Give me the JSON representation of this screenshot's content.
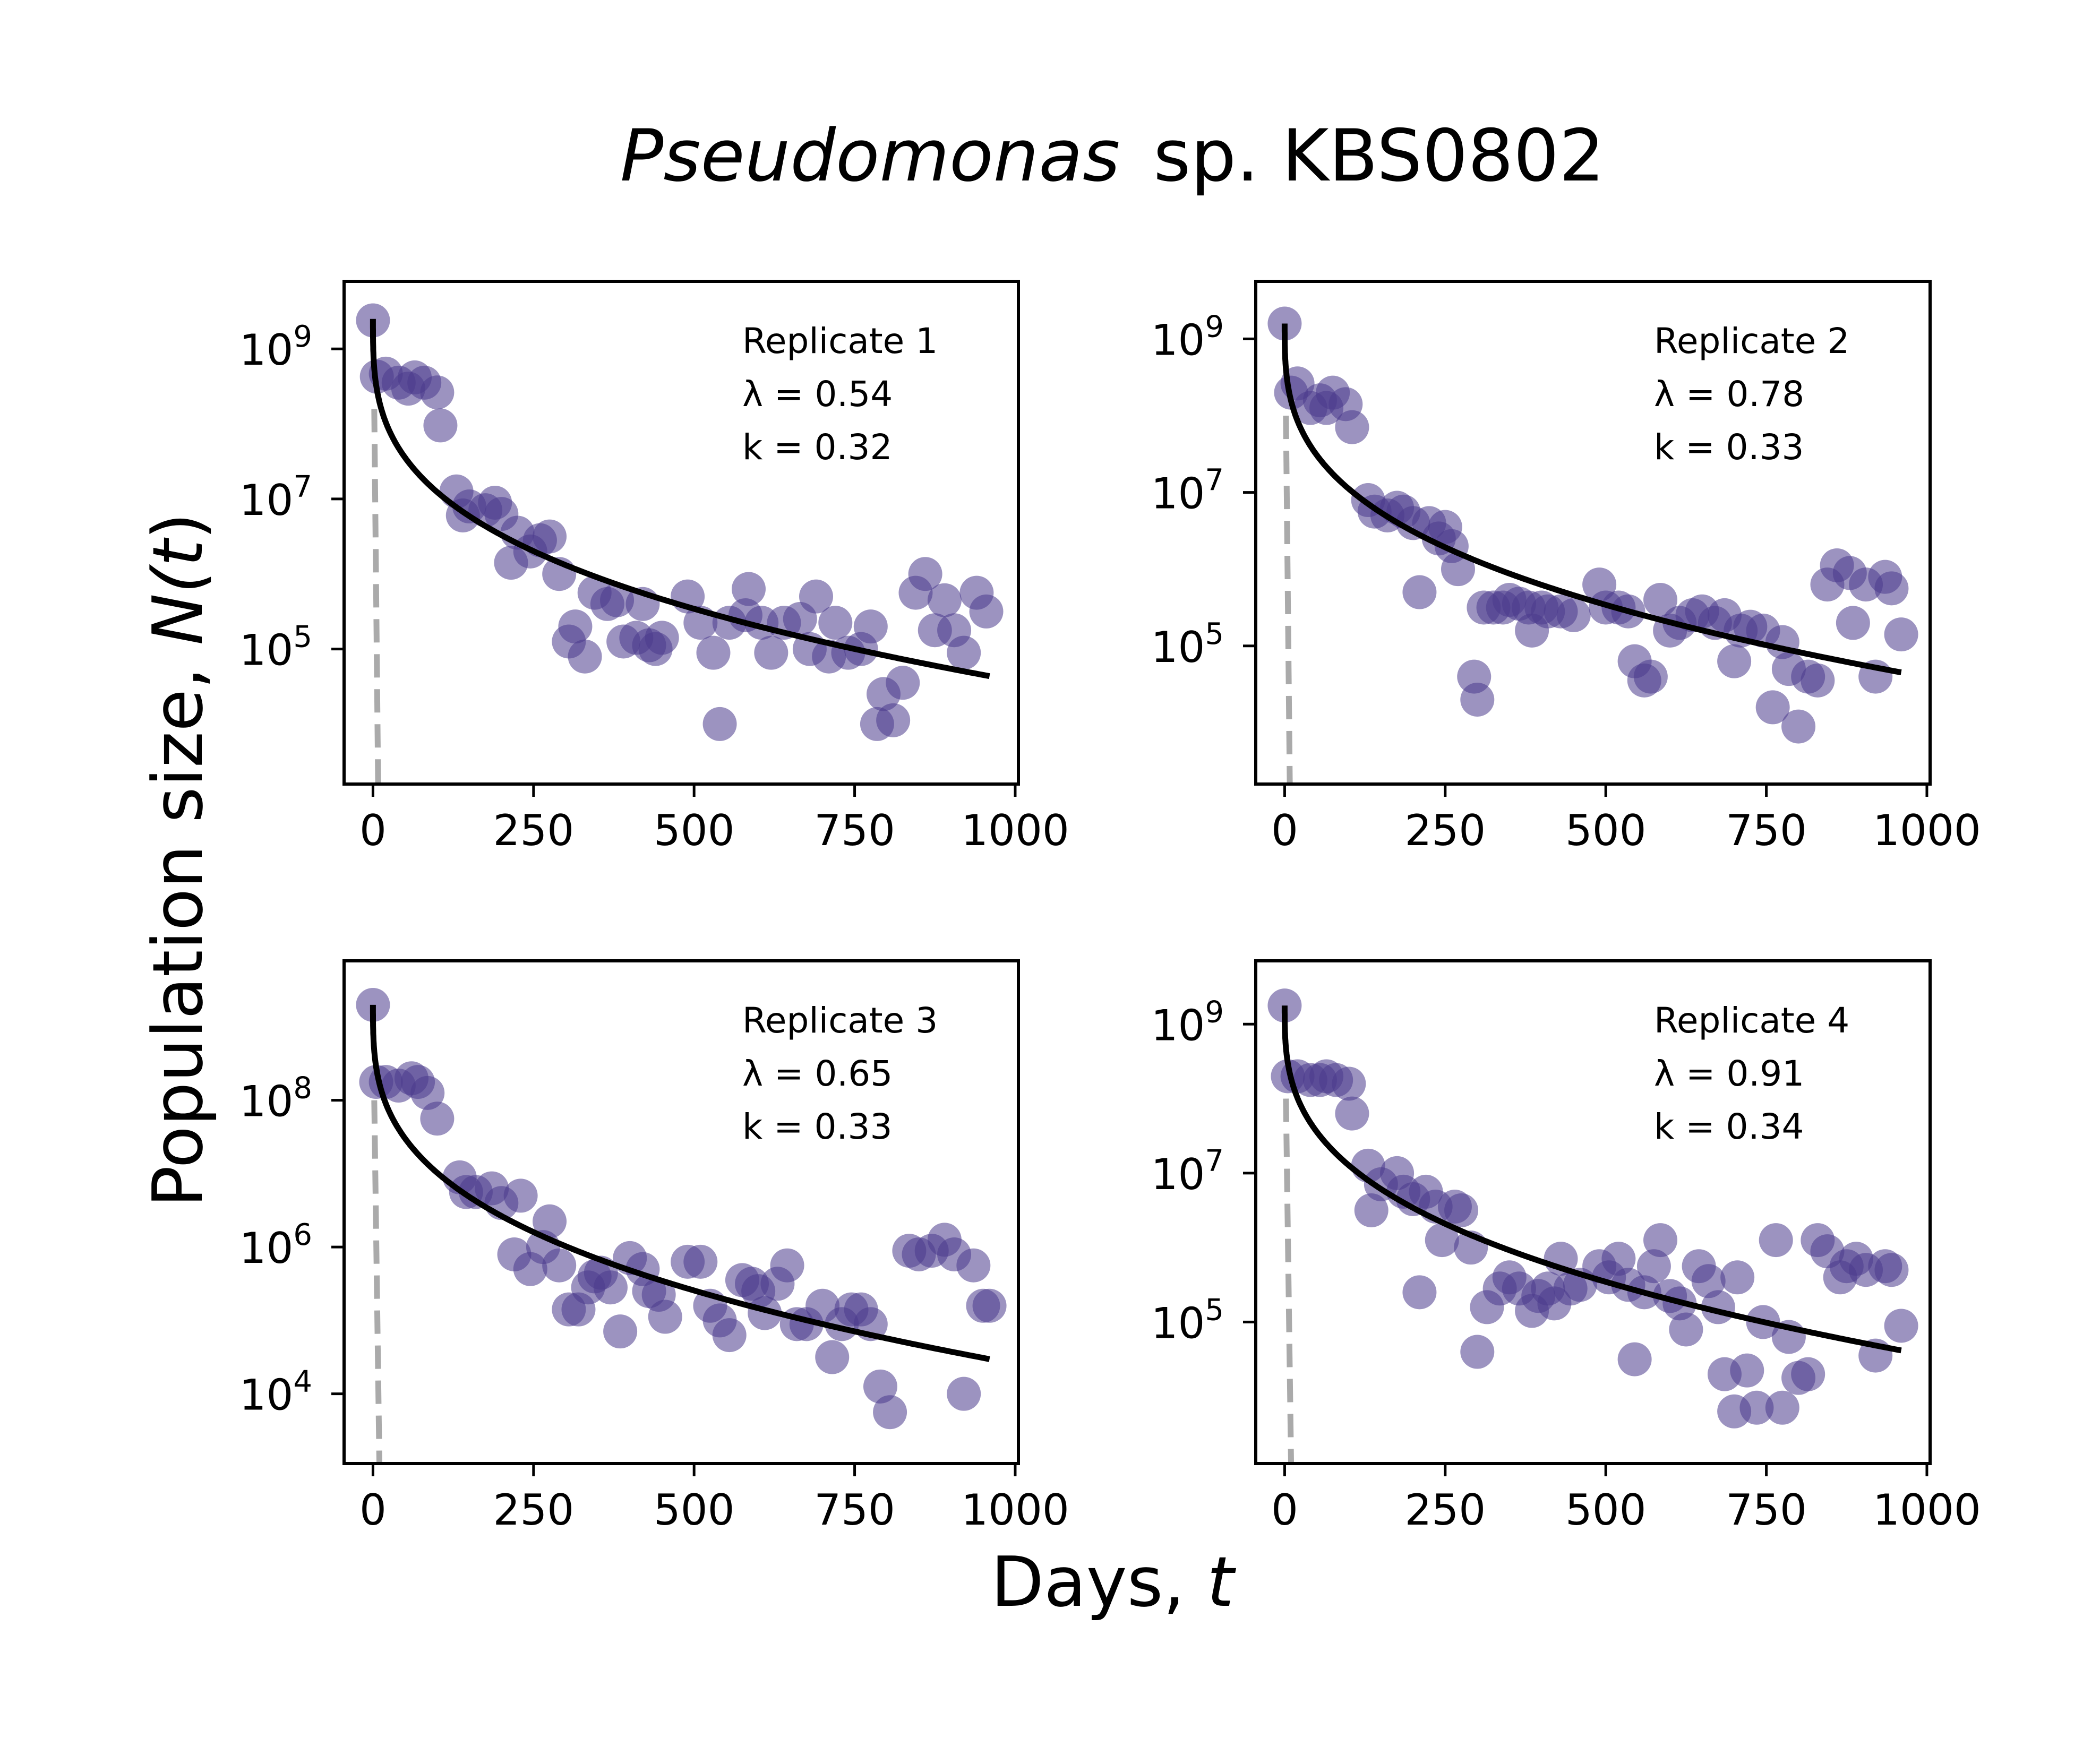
{
  "figure": {
    "title_italic": "Pseudomonas",
    "title_rest": "sp. KBS0802",
    "xlabel_text": "Days, ",
    "xlabel_var": "t",
    "ylabel_text": "Population size, ",
    "ylabel_var_open": "N(",
    "ylabel_var_t": "t",
    "ylabel_close": ")"
  },
  "colors": {
    "points": "#4b3a8c",
    "fit": "#000000",
    "dashed": "#aaaaaa"
  },
  "chart_data": [
    {
      "type": "scatter",
      "replicate": "Replicate 1",
      "lambda_label": "λ = 0.54",
      "k_label": "k = 0.32",
      "lambda": 0.54,
      "k": 0.32,
      "xlim": [
        -45,
        1005
      ],
      "ylog_range": [
        3.2,
        9.9
      ],
      "yscale": "log",
      "xticks": [
        0,
        250,
        500,
        750,
        1000
      ],
      "yticks": [
        {
          "exp": 5,
          "label": "10",
          "sup": "5"
        },
        {
          "exp": 7,
          "label": "10",
          "sup": "7"
        },
        {
          "exp": 9,
          "label": "10",
          "sup": "9"
        }
      ],
      "dashed_line": {
        "x": [
          2,
          8
        ],
        "log10y": [
          8.2,
          3.2
        ]
      },
      "fit": {
        "N0_log10": 9.4,
        "t_end": 960
      },
      "points": [
        [
          0,
          9.38
        ],
        [
          6,
          8.63
        ],
        [
          20,
          8.67
        ],
        [
          40,
          8.55
        ],
        [
          55,
          8.47
        ],
        [
          65,
          8.62
        ],
        [
          80,
          8.55
        ],
        [
          100,
          8.42
        ],
        [
          105,
          7.98
        ],
        [
          130,
          7.1
        ],
        [
          140,
          6.78
        ],
        [
          150,
          6.9
        ],
        [
          175,
          6.85
        ],
        [
          190,
          6.95
        ],
        [
          200,
          6.8
        ],
        [
          215,
          6.15
        ],
        [
          225,
          6.55
        ],
        [
          245,
          6.3
        ],
        [
          260,
          6.45
        ],
        [
          275,
          6.5
        ],
        [
          290,
          6.0
        ],
        [
          305,
          5.1
        ],
        [
          315,
          5.3
        ],
        [
          330,
          4.9
        ],
        [
          345,
          5.75
        ],
        [
          365,
          5.6
        ],
        [
          380,
          5.65
        ],
        [
          390,
          5.1
        ],
        [
          410,
          5.15
        ],
        [
          420,
          5.6
        ],
        [
          430,
          5.05
        ],
        [
          440,
          5.0
        ],
        [
          450,
          5.15
        ],
        [
          490,
          5.7
        ],
        [
          510,
          5.35
        ],
        [
          530,
          4.95
        ],
        [
          540,
          4.0
        ],
        [
          555,
          5.35
        ],
        [
          580,
          5.45
        ],
        [
          585,
          5.8
        ],
        [
          605,
          5.35
        ],
        [
          620,
          4.95
        ],
        [
          640,
          5.35
        ],
        [
          665,
          5.4
        ],
        [
          680,
          5.0
        ],
        [
          690,
          5.7
        ],
        [
          710,
          4.9
        ],
        [
          720,
          5.35
        ],
        [
          740,
          4.95
        ],
        [
          760,
          5.0
        ],
        [
          775,
          5.3
        ],
        [
          785,
          4.0
        ],
        [
          795,
          4.4
        ],
        [
          810,
          4.05
        ],
        [
          825,
          4.55
        ],
        [
          845,
          5.75
        ],
        [
          860,
          6.0
        ],
        [
          875,
          5.25
        ],
        [
          890,
          5.65
        ],
        [
          905,
          5.25
        ],
        [
          920,
          4.95
        ],
        [
          940,
          5.75
        ],
        [
          955,
          5.5
        ]
      ]
    },
    {
      "type": "scatter",
      "replicate": "Replicate 2",
      "lambda_label": "λ = 0.78",
      "k_label": "k = 0.33",
      "lambda": 0.78,
      "k": 0.33,
      "xlim": [
        -45,
        1005
      ],
      "ylog_range": [
        3.2,
        9.75
      ],
      "yscale": "log",
      "xticks": [
        0,
        250,
        500,
        750,
        1000
      ],
      "yticks": [
        {
          "exp": 5,
          "label": "10",
          "sup": "5"
        },
        {
          "exp": 7,
          "label": "10",
          "sup": "7"
        },
        {
          "exp": 9,
          "label": "10",
          "sup": "9"
        }
      ],
      "dashed_line": {
        "x": [
          2,
          8
        ],
        "log10y": [
          8.0,
          3.2
        ]
      },
      "fit": {
        "N0_log10": 9.2,
        "t_end": 960
      },
      "points": [
        [
          0,
          9.2
        ],
        [
          10,
          8.3
        ],
        [
          20,
          8.42
        ],
        [
          40,
          8.1
        ],
        [
          55,
          8.2
        ],
        [
          65,
          8.1
        ],
        [
          75,
          8.3
        ],
        [
          95,
          8.15
        ],
        [
          105,
          7.85
        ],
        [
          130,
          6.9
        ],
        [
          140,
          6.75
        ],
        [
          160,
          6.7
        ],
        [
          175,
          6.8
        ],
        [
          185,
          6.75
        ],
        [
          200,
          6.6
        ],
        [
          210,
          5.7
        ],
        [
          225,
          6.6
        ],
        [
          240,
          6.4
        ],
        [
          250,
          6.55
        ],
        [
          260,
          6.3
        ],
        [
          270,
          6.0
        ],
        [
          295,
          4.6
        ],
        [
          300,
          4.3
        ],
        [
          310,
          5.5
        ],
        [
          325,
          5.5
        ],
        [
          340,
          5.5
        ],
        [
          350,
          5.6
        ],
        [
          365,
          5.55
        ],
        [
          380,
          5.5
        ],
        [
          385,
          5.2
        ],
        [
          400,
          5.5
        ],
        [
          410,
          5.45
        ],
        [
          430,
          5.45
        ],
        [
          450,
          5.4
        ],
        [
          490,
          5.8
        ],
        [
          500,
          5.5
        ],
        [
          520,
          5.5
        ],
        [
          535,
          5.45
        ],
        [
          545,
          4.8
        ],
        [
          560,
          4.55
        ],
        [
          570,
          4.6
        ],
        [
          585,
          5.6
        ],
        [
          600,
          5.2
        ],
        [
          615,
          5.3
        ],
        [
          635,
          5.4
        ],
        [
          650,
          5.45
        ],
        [
          670,
          5.3
        ],
        [
          685,
          5.4
        ],
        [
          700,
          4.8
        ],
        [
          710,
          5.2
        ],
        [
          725,
          5.25
        ],
        [
          745,
          5.2
        ],
        [
          760,
          4.2
        ],
        [
          775,
          5.05
        ],
        [
          785,
          4.7
        ],
        [
          800,
          3.95
        ],
        [
          815,
          4.6
        ],
        [
          830,
          4.55
        ],
        [
          845,
          5.8
        ],
        [
          860,
          6.05
        ],
        [
          880,
          5.95
        ],
        [
          885,
          5.3
        ],
        [
          905,
          5.8
        ],
        [
          920,
          4.6
        ],
        [
          935,
          5.9
        ],
        [
          945,
          5.75
        ],
        [
          960,
          5.15
        ]
      ]
    },
    {
      "type": "scatter",
      "replicate": "Replicate 3",
      "lambda_label": "λ = 0.65",
      "k_label": "k = 0.33",
      "lambda": 0.65,
      "k": 0.33,
      "xlim": [
        -45,
        1005
      ],
      "ylog_range": [
        3.05,
        9.9
      ],
      "yscale": "log",
      "xticks": [
        0,
        250,
        500,
        750,
        1000
      ],
      "yticks": [
        {
          "exp": 4,
          "label": "10",
          "sup": "4"
        },
        {
          "exp": 6,
          "label": "10",
          "sup": "6"
        },
        {
          "exp": 8,
          "label": "10",
          "sup": "8"
        }
      ],
      "dashed_line": {
        "x": [
          2,
          10
        ],
        "log10y": [
          8.0,
          3.05
        ]
      },
      "fit": {
        "N0_log10": 9.3,
        "t_end": 960
      },
      "points": [
        [
          0,
          9.3
        ],
        [
          5,
          8.25
        ],
        [
          20,
          8.25
        ],
        [
          40,
          8.2
        ],
        [
          60,
          8.3
        ],
        [
          70,
          8.25
        ],
        [
          85,
          8.1
        ],
        [
          100,
          7.75
        ],
        [
          135,
          6.95
        ],
        [
          145,
          6.75
        ],
        [
          160,
          6.75
        ],
        [
          185,
          6.8
        ],
        [
          200,
          6.6
        ],
        [
          220,
          5.9
        ],
        [
          230,
          6.7
        ],
        [
          245,
          5.7
        ],
        [
          265,
          6.0
        ],
        [
          275,
          6.35
        ],
        [
          290,
          5.75
        ],
        [
          305,
          5.15
        ],
        [
          320,
          5.15
        ],
        [
          335,
          5.45
        ],
        [
          345,
          5.6
        ],
        [
          355,
          5.65
        ],
        [
          370,
          5.45
        ],
        [
          385,
          4.85
        ],
        [
          400,
          5.85
        ],
        [
          420,
          5.7
        ],
        [
          430,
          5.4
        ],
        [
          445,
          5.35
        ],
        [
          455,
          5.05
        ],
        [
          490,
          5.8
        ],
        [
          510,
          5.8
        ],
        [
          525,
          5.2
        ],
        [
          540,
          5.0
        ],
        [
          555,
          4.8
        ],
        [
          575,
          5.55
        ],
        [
          590,
          5.5
        ],
        [
          600,
          5.4
        ],
        [
          610,
          5.1
        ],
        [
          630,
          5.5
        ],
        [
          645,
          5.75
        ],
        [
          660,
          4.95
        ],
        [
          675,
          4.95
        ],
        [
          700,
          5.2
        ],
        [
          715,
          4.5
        ],
        [
          730,
          4.95
        ],
        [
          745,
          5.15
        ],
        [
          760,
          5.15
        ],
        [
          775,
          4.95
        ],
        [
          790,
          4.1
        ],
        [
          805,
          3.75
        ],
        [
          835,
          5.95
        ],
        [
          850,
          5.9
        ],
        [
          870,
          5.95
        ],
        [
          890,
          6.1
        ],
        [
          905,
          5.9
        ],
        [
          920,
          4.0
        ],
        [
          935,
          5.75
        ],
        [
          950,
          5.2
        ],
        [
          960,
          5.2
        ]
      ]
    },
    {
      "type": "scatter",
      "replicate": "Replicate 4",
      "lambda_label": "λ = 0.91",
      "k_label": "k = 0.34",
      "lambda": 0.91,
      "k": 0.34,
      "xlim": [
        -45,
        1005
      ],
      "ylog_range": [
        3.1,
        9.85
      ],
      "yscale": "log",
      "xticks": [
        0,
        250,
        500,
        750,
        1000
      ],
      "yticks": [
        {
          "exp": 5,
          "label": "10",
          "sup": "5"
        },
        {
          "exp": 7,
          "label": "10",
          "sup": "7"
        },
        {
          "exp": 9,
          "label": "10",
          "sup": "9"
        }
      ],
      "dashed_line": {
        "x": [
          2,
          10
        ],
        "log10y": [
          8.0,
          3.1
        ]
      },
      "fit": {
        "N0_log10": 9.25,
        "t_end": 960
      },
      "points": [
        [
          0,
          9.25
        ],
        [
          5,
          8.3
        ],
        [
          20,
          8.3
        ],
        [
          40,
          8.25
        ],
        [
          55,
          8.25
        ],
        [
          65,
          8.3
        ],
        [
          80,
          8.25
        ],
        [
          100,
          8.2
        ],
        [
          105,
          7.8
        ],
        [
          130,
          7.1
        ],
        [
          135,
          6.5
        ],
        [
          150,
          6.85
        ],
        [
          175,
          7.0
        ],
        [
          185,
          6.75
        ],
        [
          200,
          6.65
        ],
        [
          210,
          5.4
        ],
        [
          220,
          6.75
        ],
        [
          235,
          6.55
        ],
        [
          245,
          6.1
        ],
        [
          265,
          6.55
        ],
        [
          275,
          6.5
        ],
        [
          290,
          6.0
        ],
        [
          300,
          4.6
        ],
        [
          315,
          5.2
        ],
        [
          335,
          5.45
        ],
        [
          350,
          5.6
        ],
        [
          365,
          5.45
        ],
        [
          385,
          5.15
        ],
        [
          395,
          5.35
        ],
        [
          410,
          5.45
        ],
        [
          420,
          5.25
        ],
        [
          430,
          5.85
        ],
        [
          445,
          5.45
        ],
        [
          460,
          5.5
        ],
        [
          490,
          5.75
        ],
        [
          505,
          5.6
        ],
        [
          520,
          5.85
        ],
        [
          535,
          5.5
        ],
        [
          545,
          4.5
        ],
        [
          560,
          5.4
        ],
        [
          575,
          5.75
        ],
        [
          585,
          6.1
        ],
        [
          600,
          5.35
        ],
        [
          615,
          5.25
        ],
        [
          625,
          4.9
        ],
        [
          645,
          5.75
        ],
        [
          660,
          5.55
        ],
        [
          675,
          5.2
        ],
        [
          685,
          4.3
        ],
        [
          700,
          3.8
        ],
        [
          705,
          5.6
        ],
        [
          720,
          4.35
        ],
        [
          735,
          3.85
        ],
        [
          745,
          5.0
        ],
        [
          765,
          6.1
        ],
        [
          775,
          3.85
        ],
        [
          785,
          4.8
        ],
        [
          800,
          4.25
        ],
        [
          815,
          4.3
        ],
        [
          830,
          6.1
        ],
        [
          845,
          5.95
        ],
        [
          865,
          5.6
        ],
        [
          875,
          5.75
        ],
        [
          890,
          5.85
        ],
        [
          905,
          5.7
        ],
        [
          920,
          4.55
        ],
        [
          935,
          5.75
        ],
        [
          945,
          5.7
        ],
        [
          960,
          4.95
        ]
      ]
    }
  ]
}
